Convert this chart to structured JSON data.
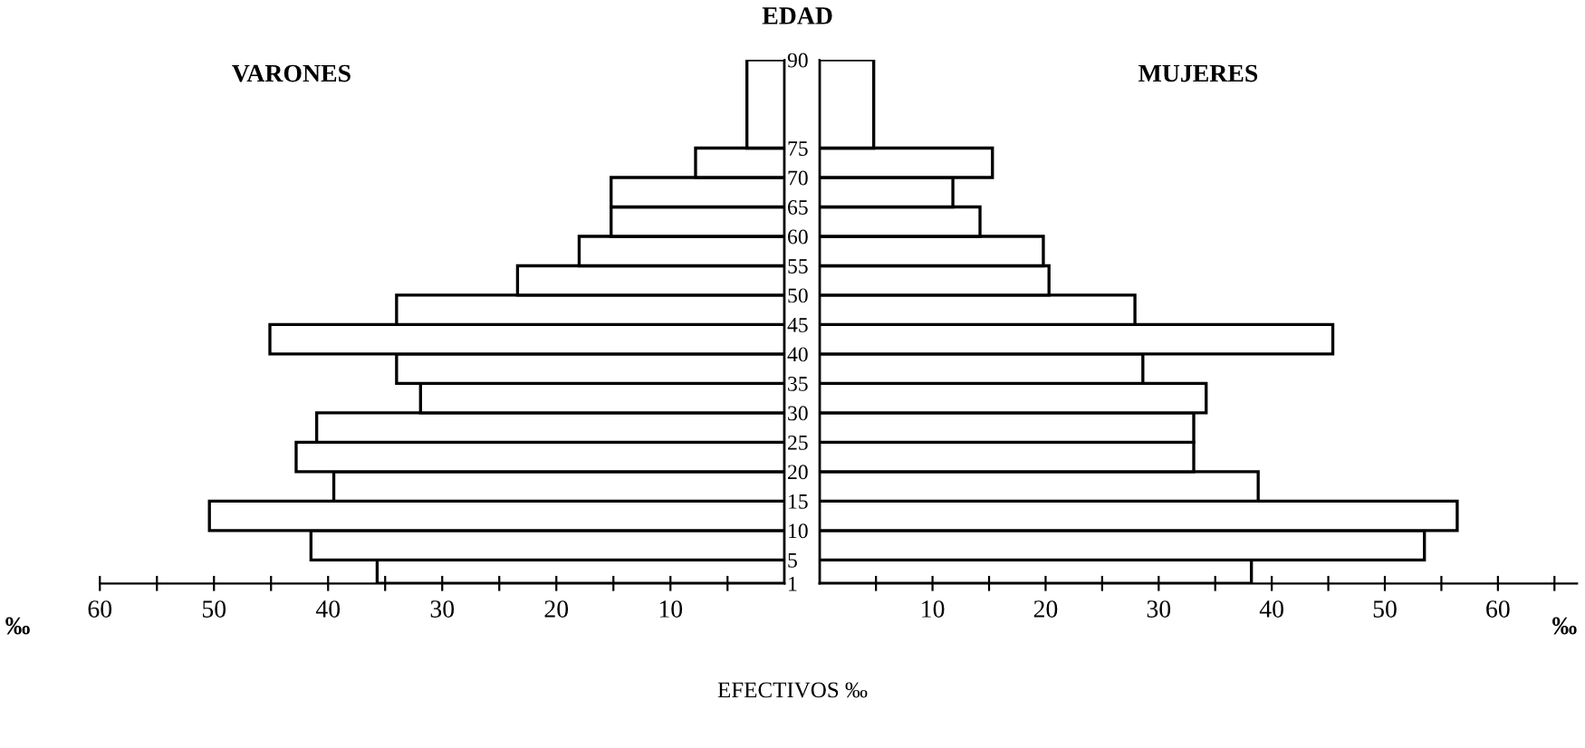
{
  "chart_data": [
    {
      "type": "histogram",
      "orientation": "horizontal",
      "title": "VARONES",
      "ylabel": "EDAD",
      "xlabel": "‰",
      "color": "#ffffff",
      "bins": [
        1,
        5,
        10,
        15,
        20,
        25,
        30,
        35,
        40,
        45,
        50,
        55,
        60,
        65,
        70,
        75,
        90
      ],
      "values": [
        35.7,
        41.5,
        50.4,
        39.5,
        42.8,
        41.0,
        31.9,
        34.0,
        45.1,
        34.0,
        23.4,
        18.0,
        15.2,
        15.2,
        7.8,
        3.3
      ],
      "xlim": [
        60,
        0
      ],
      "xticks": [
        {
          "value": 60,
          "label": "60"
        },
        {
          "value": 55,
          "label": null
        },
        {
          "value": 50,
          "label": "50"
        },
        {
          "value": 45,
          "label": null
        },
        {
          "value": 40,
          "label": "40"
        },
        {
          "value": 35,
          "label": null
        },
        {
          "value": 30,
          "label": "30"
        },
        {
          "value": 25,
          "label": null
        },
        {
          "value": 20,
          "label": "20"
        },
        {
          "value": 15,
          "label": null
        },
        {
          "value": 10,
          "label": "10"
        },
        {
          "value": 5,
          "label": null
        }
      ],
      "ylim": [
        1,
        90
      ],
      "yticks": [
        1,
        5,
        10,
        15,
        20,
        25,
        30,
        35,
        40,
        45,
        50,
        55,
        60,
        65,
        70,
        75,
        90
      ],
      "annotations": [
        "EFECTIVOS ‰"
      ]
    },
    {
      "type": "histogram",
      "orientation": "horizontal",
      "title": "MUJERES",
      "xlabel": "‰",
      "color": "#ffffff",
      "tick_labels": "x",
      "bins": [
        1,
        5,
        10,
        15,
        20,
        25,
        30,
        35,
        40,
        45,
        50,
        55,
        60,
        65,
        70,
        75,
        90
      ],
      "values": [
        38.2,
        53.5,
        56.4,
        38.8,
        33.1,
        33.1,
        34.2,
        28.6,
        45.4,
        27.9,
        20.3,
        19.8,
        14.2,
        11.8,
        15.3,
        4.8
      ],
      "xlim": [
        0,
        67
      ],
      "xticks": [
        {
          "value": 5,
          "label": null
        },
        {
          "value": 10,
          "label": "10"
        },
        {
          "value": 15,
          "label": null
        },
        {
          "value": 20,
          "label": "20"
        },
        {
          "value": 25,
          "label": null
        },
        {
          "value": 30,
          "label": "30"
        },
        {
          "value": 35,
          "label": null
        },
        {
          "value": 40,
          "label": "40"
        },
        {
          "value": 45,
          "label": null
        },
        {
          "value": 50,
          "label": "50"
        },
        {
          "value": 55,
          "label": null
        },
        {
          "value": 60,
          "label": "60"
        },
        {
          "value": 65,
          "label": null
        }
      ],
      "ylim": [
        1,
        90
      ],
      "yticks": [
        1,
        5,
        10,
        15,
        20,
        25,
        30,
        35,
        40,
        45,
        50,
        55,
        60,
        65,
        70,
        75,
        90
      ]
    }
  ]
}
